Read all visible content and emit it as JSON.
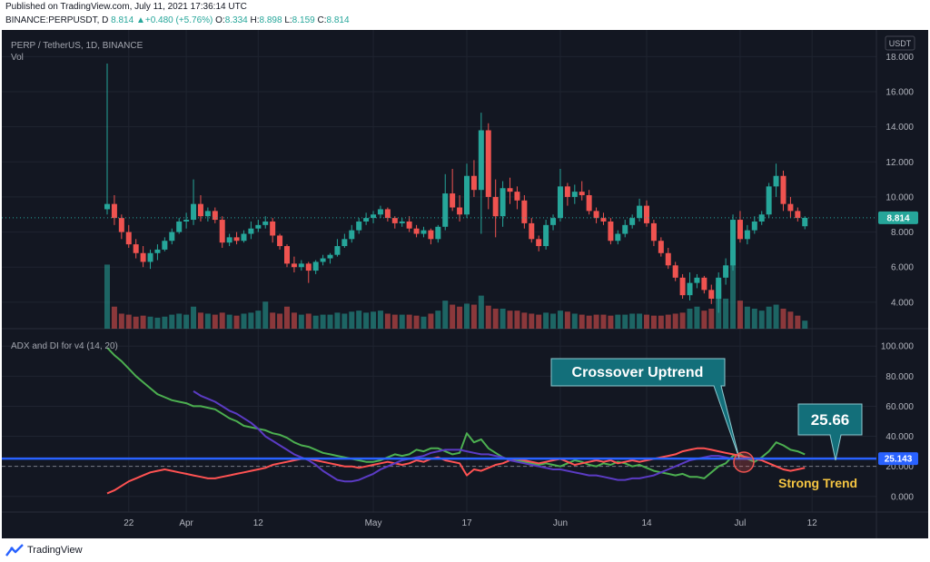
{
  "header": {
    "published": "Published on TradingView.com, July 11, 2021 17:36:14 UTC",
    "symbol": "BINANCE:PERPUSDT, D",
    "last": "8.814",
    "change": "+0.480 (+5.76%)",
    "o_label": "O:",
    "o": "8.334",
    "h_label": "H:",
    "h": "8.898",
    "l_label": "L:",
    "l": "8.159",
    "c_label": "C:",
    "c": "8.814"
  },
  "pane": {
    "title": "PERP / TetherUS, 1D, BINANCE",
    "vol_label": "Vol",
    "currency": "USDT",
    "indicator_title": "ADX and DI for v4 (14, 20)"
  },
  "footer": {
    "brand": "TradingView"
  },
  "colors": {
    "background": "#131722",
    "grid": "#1f2430",
    "up": "#26a69a",
    "down": "#ef5350",
    "adx": "#5b3bc4",
    "di_plus": "#4caf50",
    "di_minus": "#ff5252",
    "threshold": "#2962ff",
    "callout": "#136f7a",
    "strong_trend": "#f5c542"
  },
  "chart_data": [
    {
      "type": "candlestick",
      "title": "PERP / TetherUS, 1D, BINANCE",
      "x_ticks": [
        "22",
        "Apr",
        "12",
        "May",
        "17",
        "Jun",
        "14",
        "Jul",
        "12"
      ],
      "y_ticks": [
        "18.000",
        "16.000",
        "14.000",
        "12.000",
        "10.000",
        "8.000",
        "6.000",
        "4.000"
      ],
      "ylim": [
        2.7,
        19.0
      ],
      "last_price_label": "8.814",
      "last_price": 8.814,
      "candles": [
        [
          9.3,
          17.6,
          9.0,
          9.6
        ],
        [
          9.6,
          10.1,
          8.4,
          8.8
        ],
        [
          8.8,
          9.0,
          7.6,
          8.0
        ],
        [
          8.0,
          8.4,
          7.1,
          7.3
        ],
        [
          7.3,
          7.6,
          6.5,
          6.8
        ],
        [
          6.8,
          7.2,
          6.0,
          6.3
        ],
        [
          6.3,
          7.0,
          5.9,
          6.8
        ],
        [
          6.8,
          7.3,
          6.4,
          7.0
        ],
        [
          7.0,
          7.7,
          6.9,
          7.5
        ],
        [
          7.5,
          8.2,
          7.3,
          8.0
        ],
        [
          8.0,
          8.8,
          7.9,
          8.6
        ],
        [
          8.6,
          9.1,
          8.2,
          8.7
        ],
        [
          8.7,
          11.0,
          8.4,
          9.6
        ],
        [
          9.6,
          10.1,
          8.6,
          8.9
        ],
        [
          8.9,
          9.4,
          8.6,
          9.2
        ],
        [
          9.2,
          9.4,
          8.5,
          8.7
        ],
        [
          8.7,
          8.9,
          7.1,
          7.4
        ],
        [
          7.4,
          7.9,
          7.2,
          7.7
        ],
        [
          7.7,
          8.0,
          7.3,
          7.5
        ],
        [
          7.5,
          8.1,
          7.4,
          7.9
        ],
        [
          7.9,
          8.6,
          7.6,
          8.2
        ],
        [
          8.2,
          8.7,
          8.0,
          8.4
        ],
        [
          8.4,
          8.9,
          8.2,
          8.6
        ],
        [
          8.6,
          8.8,
          7.4,
          7.8
        ],
        [
          7.8,
          7.9,
          7.0,
          7.2
        ],
        [
          7.2,
          7.3,
          6.0,
          6.2
        ],
        [
          6.2,
          6.6,
          5.7,
          6.0
        ],
        [
          6.0,
          6.4,
          5.8,
          6.2
        ],
        [
          6.2,
          6.3,
          5.1,
          5.8
        ],
        [
          5.8,
          6.4,
          5.6,
          6.3
        ],
        [
          6.3,
          6.7,
          6.1,
          6.5
        ],
        [
          6.5,
          6.8,
          6.2,
          6.7
        ],
        [
          6.7,
          7.6,
          6.6,
          7.2
        ],
        [
          7.2,
          7.9,
          7.1,
          7.6
        ],
        [
          7.6,
          8.4,
          7.4,
          8.1
        ],
        [
          8.1,
          8.8,
          7.9,
          8.6
        ],
        [
          8.6,
          9.1,
          8.4,
          8.8
        ],
        [
          8.8,
          9.2,
          8.5,
          9.0
        ],
        [
          9.0,
          9.5,
          8.8,
          9.3
        ],
        [
          9.3,
          9.4,
          8.6,
          8.8
        ],
        [
          8.8,
          8.9,
          8.2,
          8.5
        ],
        [
          8.5,
          8.8,
          8.3,
          8.6
        ],
        [
          8.6,
          8.9,
          8.0,
          8.2
        ],
        [
          8.2,
          8.4,
          7.7,
          7.9
        ],
        [
          7.9,
          8.3,
          7.7,
          8.1
        ],
        [
          8.1,
          8.2,
          7.3,
          7.6
        ],
        [
          7.6,
          8.4,
          7.4,
          8.3
        ],
        [
          8.3,
          11.3,
          8.1,
          10.2
        ],
        [
          10.2,
          11.6,
          9.2,
          9.4
        ],
        [
          9.4,
          10.1,
          8.6,
          9.0
        ],
        [
          9.0,
          11.9,
          8.8,
          11.2
        ],
        [
          11.2,
          12.1,
          10.0,
          10.4
        ],
        [
          10.4,
          14.8,
          7.9,
          13.8
        ],
        [
          13.8,
          14.2,
          9.3,
          10.0
        ],
        [
          10.0,
          11.0,
          7.7,
          8.9
        ],
        [
          8.9,
          10.9,
          8.3,
          10.5
        ],
        [
          10.5,
          11.1,
          9.6,
          10.3
        ],
        [
          10.3,
          10.6,
          9.3,
          9.8
        ],
        [
          9.8,
          10.1,
          8.2,
          8.5
        ],
        [
          8.5,
          8.8,
          7.4,
          7.6
        ],
        [
          7.6,
          7.8,
          6.9,
          7.2
        ],
        [
          7.2,
          8.7,
          7.0,
          8.4
        ],
        [
          8.4,
          9.0,
          8.1,
          8.8
        ],
        [
          8.8,
          11.6,
          8.6,
          10.6
        ],
        [
          10.6,
          10.8,
          9.5,
          10.0
        ],
        [
          10.0,
          10.7,
          9.6,
          10.3
        ],
        [
          10.3,
          10.9,
          9.8,
          10.1
        ],
        [
          10.1,
          10.4,
          9.0,
          9.2
        ],
        [
          9.2,
          9.4,
          8.5,
          8.8
        ],
        [
          8.8,
          9.1,
          8.4,
          8.6
        ],
        [
          8.6,
          8.8,
          7.3,
          7.5
        ],
        [
          7.5,
          8.1,
          7.3,
          7.9
        ],
        [
          7.9,
          8.7,
          7.7,
          8.4
        ],
        [
          8.4,
          9.0,
          8.2,
          8.8
        ],
        [
          8.8,
          9.9,
          8.6,
          9.5
        ],
        [
          9.5,
          9.8,
          8.3,
          8.5
        ],
        [
          8.5,
          8.7,
          7.2,
          7.5
        ],
        [
          7.5,
          7.7,
          6.6,
          6.8
        ],
        [
          6.8,
          7.1,
          5.9,
          6.1
        ],
        [
          6.1,
          6.3,
          5.2,
          5.4
        ],
        [
          5.4,
          5.6,
          4.2,
          4.4
        ],
        [
          4.4,
          5.7,
          4.1,
          5.1
        ],
        [
          5.1,
          5.6,
          4.8,
          5.4
        ],
        [
          5.4,
          5.5,
          4.5,
          4.7
        ],
        [
          4.7,
          5.0,
          3.9,
          4.2
        ],
        [
          4.2,
          5.7,
          3.4,
          5.4
        ],
        [
          5.4,
          6.5,
          5.0,
          6.1
        ],
        [
          6.1,
          9.0,
          5.8,
          8.7
        ],
        [
          8.7,
          9.2,
          7.4,
          7.6
        ],
        [
          7.6,
          8.4,
          7.3,
          8.1
        ],
        [
          8.1,
          8.9,
          7.9,
          8.6
        ],
        [
          8.6,
          9.2,
          8.4,
          9.0
        ],
        [
          9.0,
          10.8,
          8.8,
          10.6
        ],
        [
          10.6,
          11.9,
          10.0,
          11.2
        ],
        [
          11.2,
          11.5,
          9.2,
          9.6
        ],
        [
          9.6,
          10.0,
          8.8,
          9.2
        ],
        [
          9.2,
          9.4,
          8.6,
          8.8
        ],
        [
          8.33,
          8.9,
          8.16,
          8.81
        ]
      ],
      "volume": [
        64,
        22,
        15,
        14,
        12,
        13,
        12,
        11,
        12,
        14,
        15,
        14,
        22,
        16,
        15,
        14,
        16,
        14,
        13,
        15,
        16,
        18,
        27,
        16,
        15,
        22,
        16,
        14,
        15,
        13,
        14,
        14,
        16,
        15,
        17,
        18,
        16,
        17,
        18,
        15,
        14,
        14,
        14,
        13,
        12,
        15,
        18,
        28,
        24,
        22,
        25,
        24,
        33,
        23,
        20,
        20,
        18,
        18,
        16,
        15,
        14,
        16,
        15,
        18,
        17,
        15,
        14,
        13,
        14,
        14,
        13,
        14,
        14,
        15,
        15,
        14,
        13,
        13,
        14,
        15,
        16,
        20,
        22,
        18,
        20,
        45,
        30,
        78,
        28,
        22,
        20,
        18,
        22,
        24,
        20,
        17,
        13,
        8
      ]
    },
    {
      "type": "line",
      "title": "ADX and DI for v4 (14, 20)",
      "y_ticks": [
        "100.000",
        "80.000",
        "60.000",
        "40.000",
        "20.000",
        "0.000"
      ],
      "ylim": [
        -8,
        108
      ],
      "threshold": 20,
      "adx_label": "25.143",
      "adx_last": 25.143,
      "series": [
        {
          "key": "di_plus",
          "start": 0,
          "values": [
            99,
            94,
            90,
            85,
            80,
            76,
            72,
            68,
            66,
            64,
            63,
            62,
            60,
            60,
            59,
            58,
            55,
            52,
            50,
            47,
            46,
            45,
            44,
            42,
            41,
            39,
            36,
            34,
            33,
            31,
            29,
            28,
            27,
            26,
            25,
            24,
            23,
            23,
            24,
            26,
            28,
            27,
            28,
            31,
            30,
            32,
            32,
            30,
            28,
            29,
            42,
            36,
            38,
            32,
            29,
            26,
            24,
            24,
            23,
            22,
            21,
            22,
            21,
            20,
            22,
            24,
            23,
            21,
            20,
            22,
            21,
            23,
            22,
            20,
            21,
            19,
            17,
            16,
            15,
            14,
            15,
            13,
            13,
            12,
            16,
            20,
            22,
            27,
            28,
            25,
            23,
            26,
            30,
            36,
            34,
            31,
            30,
            28
          ]
        },
        {
          "key": "di_minus",
          "start": 0,
          "values": [
            2,
            4,
            7,
            10,
            12,
            14,
            16,
            17,
            18,
            17,
            16,
            15,
            14,
            13,
            12,
            12,
            13,
            14,
            15,
            16,
            17,
            18,
            19,
            21,
            22,
            23,
            24,
            25,
            25,
            24,
            23,
            22,
            21,
            20,
            20,
            19,
            20,
            21,
            22,
            23,
            22,
            21,
            22,
            24,
            23,
            25,
            26,
            24,
            23,
            22,
            14,
            18,
            17,
            19,
            21,
            22,
            24,
            25,
            24,
            23,
            22,
            23,
            24,
            25,
            23,
            21,
            22,
            23,
            24,
            23,
            24,
            22,
            23,
            24,
            23,
            24,
            25,
            26,
            27,
            28,
            30,
            31,
            32,
            32,
            31,
            30,
            29,
            28,
            27,
            26,
            25,
            24,
            22,
            20,
            18,
            17,
            18,
            19
          ]
        },
        {
          "key": "adx",
          "start": 12,
          "values": [
            70,
            67,
            65,
            63,
            60,
            57,
            55,
            52,
            49,
            45,
            40,
            37,
            34,
            31,
            28,
            26,
            24,
            21,
            17,
            14,
            11,
            10,
            10,
            11,
            13,
            15,
            18,
            20,
            22,
            24,
            25,
            26,
            27,
            29,
            30,
            31,
            31,
            31,
            30,
            29,
            28,
            28,
            27,
            26,
            24,
            23,
            22,
            21,
            20,
            19,
            18,
            18,
            17,
            16,
            15,
            14,
            14,
            13,
            12,
            11,
            11,
            12,
            12,
            13,
            14,
            16,
            18,
            20,
            22,
            24,
            25,
            26,
            27,
            27,
            26,
            25,
            25,
            25,
            25,
            25,
            25,
            25,
            25,
            25
          ]
        }
      ]
    }
  ],
  "annotations": {
    "crossover": "Crossover Uptrend",
    "adx_value": "25.66",
    "strong_trend": "Strong Trend"
  }
}
